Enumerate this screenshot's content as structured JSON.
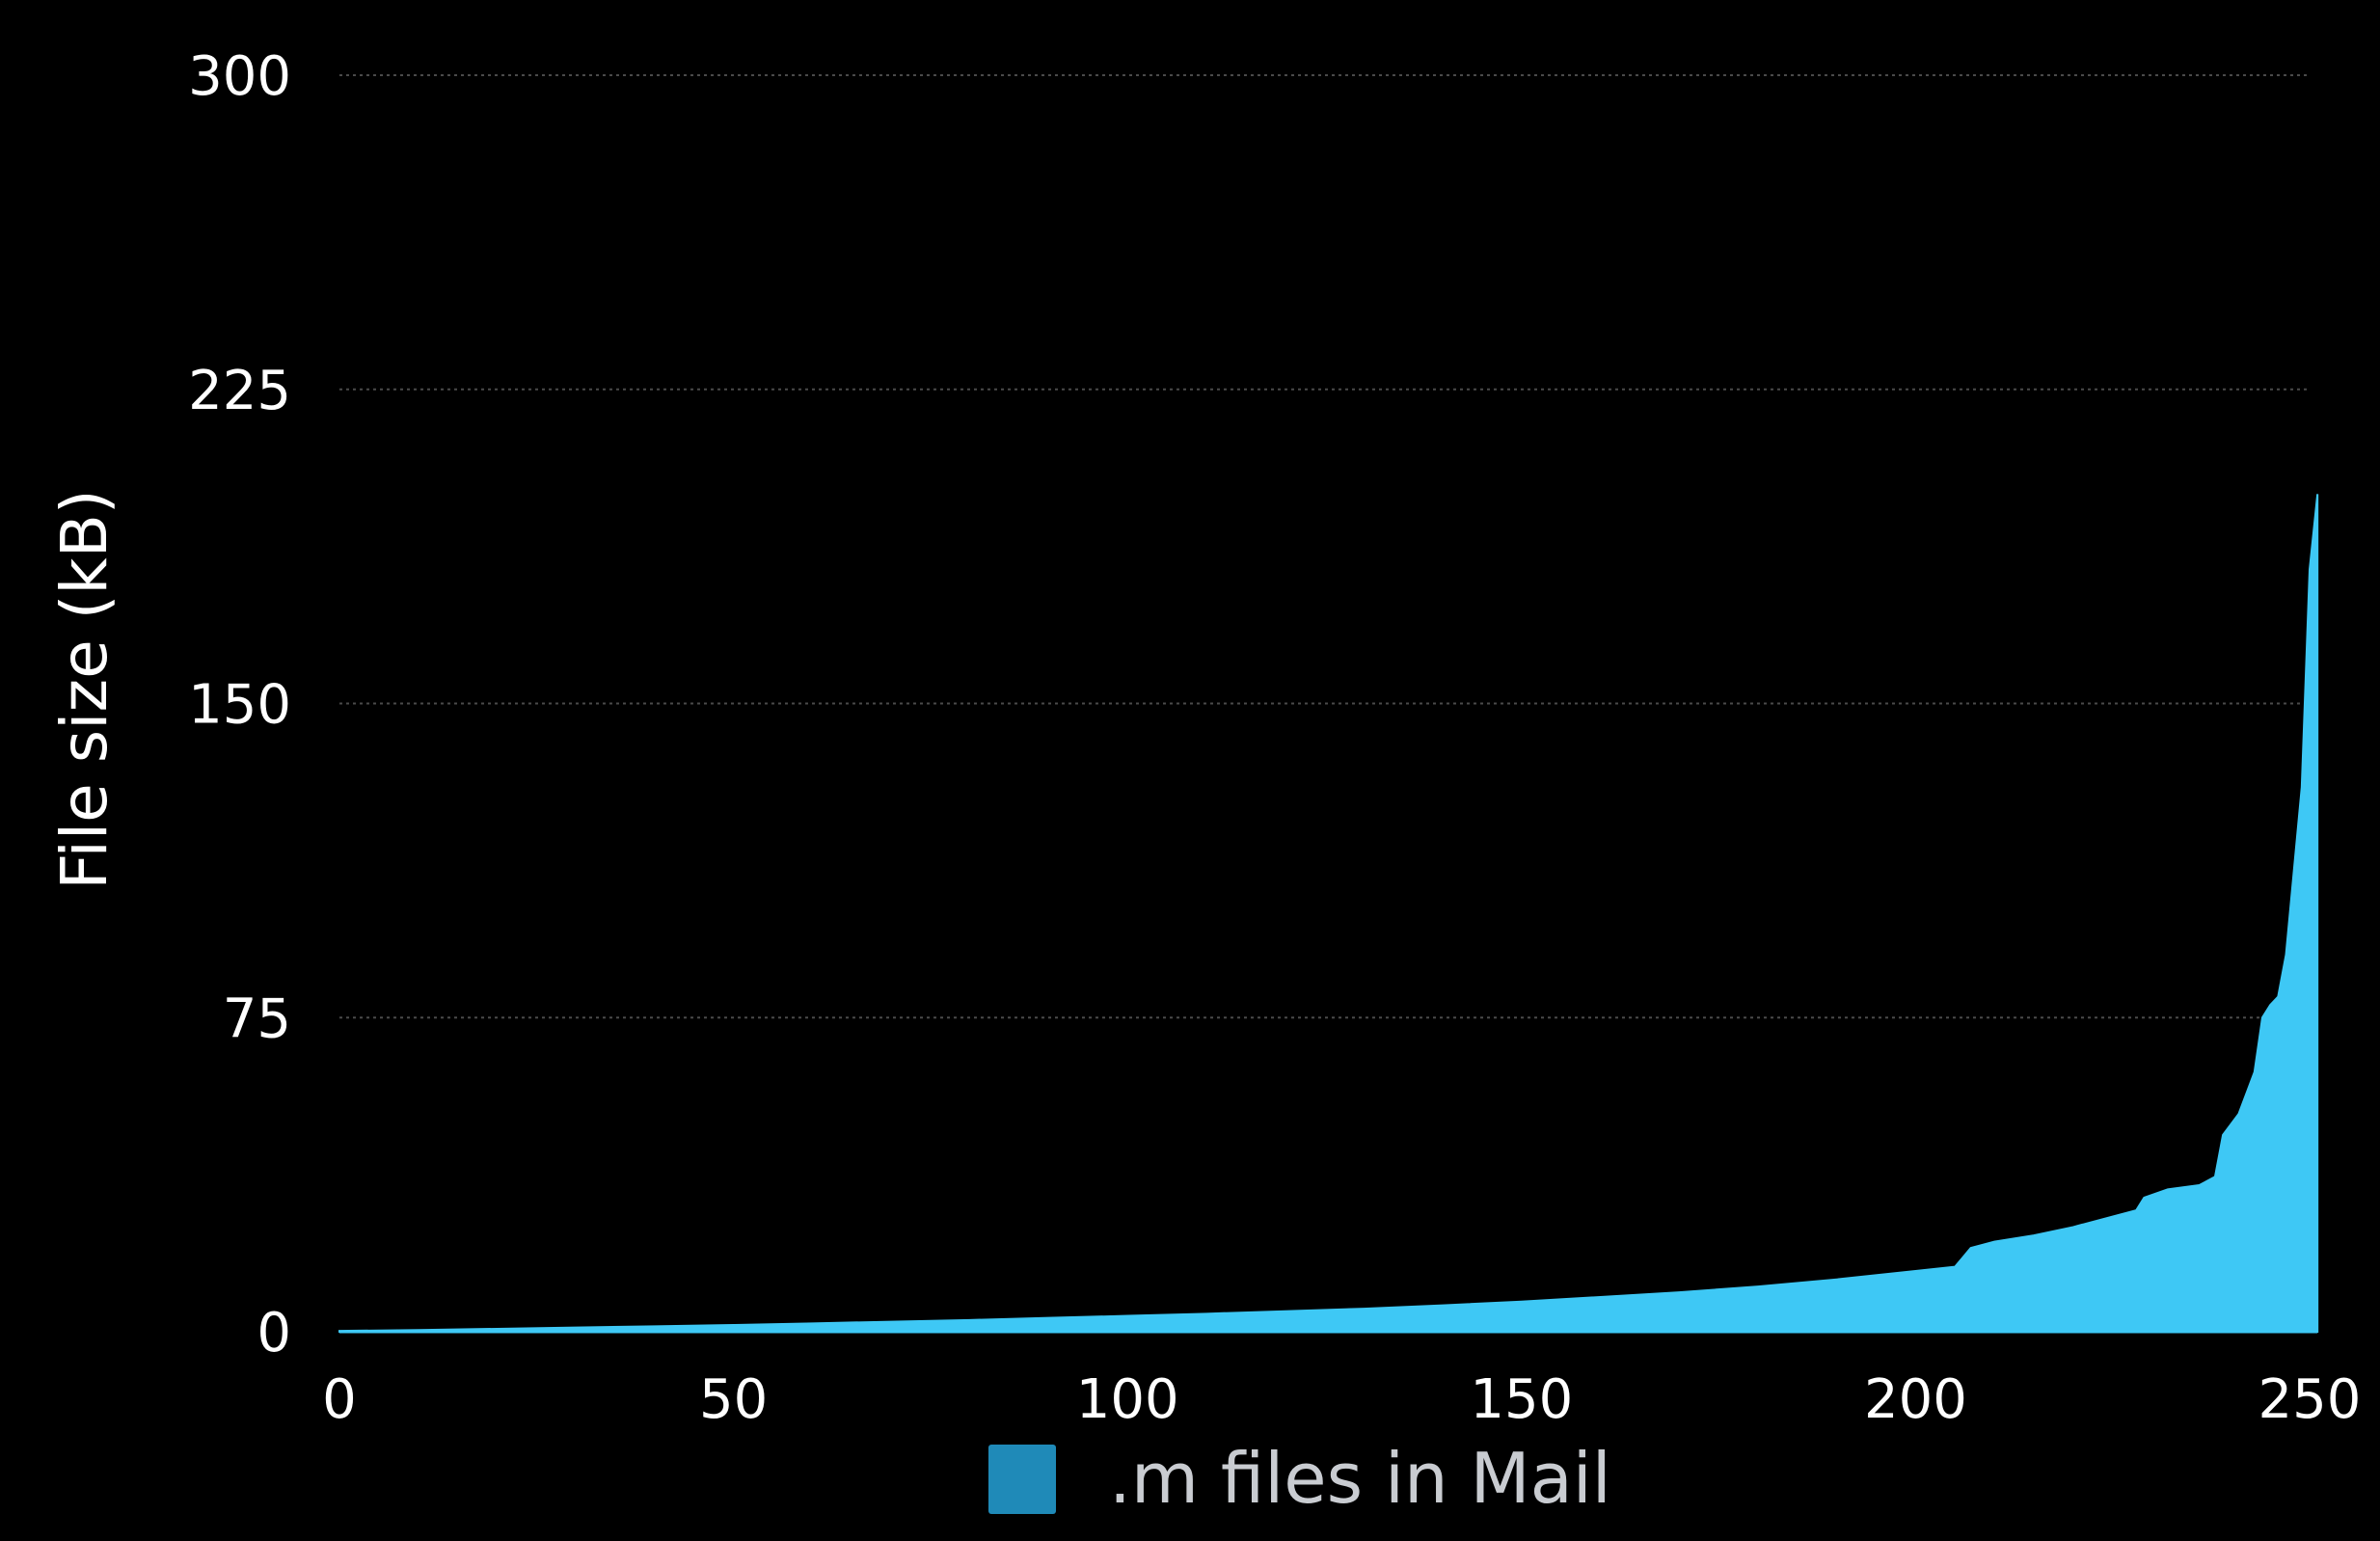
{
  "chart_data": {
    "type": "area",
    "title": "",
    "xlabel": "",
    "ylabel": "File size (kB)",
    "xlim": [
      0,
      250
    ],
    "ylim": [
      0,
      300
    ],
    "x_ticks": [
      "0",
      "50",
      "100",
      "150",
      "200",
      "250"
    ],
    "y_ticks": [
      "0",
      "75",
      "150",
      "225",
      "300"
    ],
    "grid": "horizontal dotted",
    "legend_position": "bottom-center",
    "colors": {
      "background": "#000000",
      "series_fill": "#3ec8f5",
      "legend_swatch": "#1f8ab8",
      "gridline": "#4a4a4a",
      "text": "#ffffff"
    },
    "series": [
      {
        "name": ".m files in Mail",
        "points": [
          [
            0,
            0.2
          ],
          [
            10,
            0.4
          ],
          [
            20,
            0.7
          ],
          [
            30,
            1.0
          ],
          [
            40,
            1.3
          ],
          [
            50,
            1.6
          ],
          [
            60,
            2.0
          ],
          [
            70,
            2.4
          ],
          [
            80,
            2.8
          ],
          [
            90,
            3.3
          ],
          [
            100,
            3.8
          ],
          [
            110,
            4.3
          ],
          [
            120,
            4.9
          ],
          [
            130,
            5.5
          ],
          [
            140,
            6.3
          ],
          [
            150,
            7.2
          ],
          [
            160,
            8.3
          ],
          [
            170,
            9.4
          ],
          [
            180,
            10.8
          ],
          [
            190,
            12.5
          ],
          [
            200,
            14.5
          ],
          [
            205,
            15.5
          ],
          [
            207,
            20
          ],
          [
            210,
            21.5
          ],
          [
            215,
            23
          ],
          [
            220,
            25
          ],
          [
            225,
            27.5
          ],
          [
            228,
            29
          ],
          [
            229,
            32
          ],
          [
            232,
            34
          ],
          [
            236,
            35
          ],
          [
            238,
            37
          ],
          [
            239,
            47
          ],
          [
            241,
            52
          ],
          [
            242,
            57
          ],
          [
            243,
            62
          ],
          [
            244,
            75
          ],
          [
            245,
            78
          ],
          [
            246,
            80
          ],
          [
            247,
            90
          ],
          [
            248,
            110
          ],
          [
            249,
            130
          ],
          [
            250,
            182
          ],
          [
            251,
            200
          ]
        ]
      }
    ]
  }
}
